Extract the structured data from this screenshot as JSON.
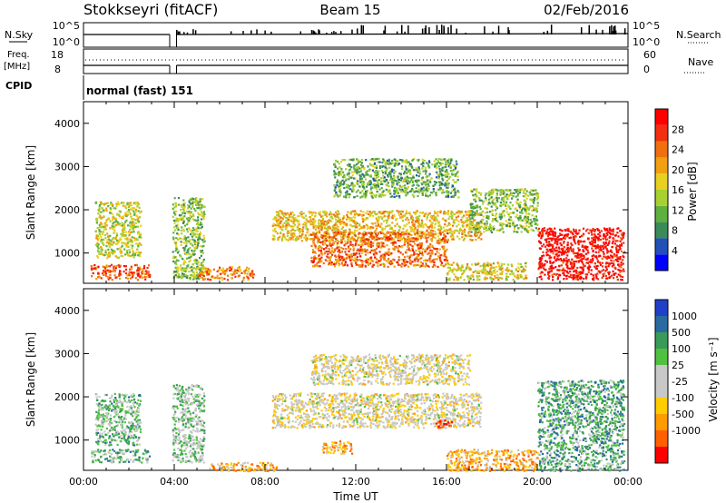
{
  "header": {
    "site": "Stokkseyri (fitACF)",
    "beam": "Beam 15",
    "date": "02/Feb/2016"
  },
  "top_panels": {
    "nsky_label": "N.Sky",
    "nsearch_label": "N.Search",
    "nsky_ticks": [
      "10^5",
      "10^0"
    ],
    "nsearch_ticks": [
      "10^5",
      "10^0"
    ],
    "freq_label_1": "Freq.",
    "freq_label_2": "[MHz]",
    "freq_ticks": [
      "18",
      "8"
    ],
    "nave_label": "Nave",
    "nave_ticks": [
      "60",
      "0"
    ],
    "cpid_label": "CPID",
    "cpid_value": "normal (fast) 151"
  },
  "colors": {
    "power": [
      "#0000ff",
      "#2050b8",
      "#3a8a5a",
      "#60b040",
      "#a8d030",
      "#e8d020",
      "#f0a010",
      "#f07010",
      "#f03010",
      "#ff0000"
    ],
    "velocity": [
      "#ff0000",
      "#ff6000",
      "#ff9a00",
      "#ffcc00",
      "#c8c8c8",
      "#c8c8c8",
      "#50c040",
      "#3a9a5a",
      "#2a6aa0",
      "#2040c8"
    ]
  },
  "chart_data": [
    {
      "type": "heatmap",
      "name": "power",
      "ylabel": "Slant Range [km]",
      "yticks": [
        "1000",
        "2000",
        "3000",
        "4000"
      ],
      "ylim": [
        300,
        4500
      ],
      "xlim": [
        0,
        24
      ],
      "colorbar_label": "Power [dB]",
      "colorbar_ticks": [
        "4",
        "8",
        "12",
        "16",
        "20",
        "24",
        "28"
      ],
      "colorbar_range": [
        0,
        32
      ],
      "features": [
        {
          "t0": 0.3,
          "t1": 2.9,
          "r0": 400,
          "r1": 750,
          "level": 0.8
        },
        {
          "t0": 0.5,
          "t1": 2.5,
          "r0": 900,
          "r1": 2200,
          "level": 0.5
        },
        {
          "t0": 3.9,
          "t1": 5.3,
          "r0": 400,
          "r1": 2300,
          "level": 0.4
        },
        {
          "t0": 5.0,
          "t1": 7.5,
          "r0": 400,
          "r1": 700,
          "level": 0.7
        },
        {
          "t0": 8.3,
          "t1": 17.5,
          "r0": 1300,
          "r1": 2000,
          "level": 0.6
        },
        {
          "t0": 10.0,
          "t1": 16.0,
          "r0": 700,
          "r1": 1500,
          "level": 0.75
        },
        {
          "t0": 11.0,
          "t1": 16.5,
          "r0": 2300,
          "r1": 3200,
          "level": 0.35
        },
        {
          "t0": 16.0,
          "t1": 19.5,
          "r0": 400,
          "r1": 800,
          "level": 0.55
        },
        {
          "t0": 17.0,
          "t1": 20.0,
          "r0": 1500,
          "r1": 2500,
          "level": 0.4
        },
        {
          "t0": 20.0,
          "t1": 23.8,
          "r0": 400,
          "r1": 1600,
          "level": 0.95
        }
      ]
    },
    {
      "type": "heatmap",
      "name": "velocity",
      "xlabel": "Time UT",
      "ylabel": "Slant Range [km]",
      "xticks": [
        "00:00",
        "04:00",
        "08:00",
        "12:00",
        "16:00",
        "20:00",
        "00:00"
      ],
      "yticks": [
        "1000",
        "2000",
        "3000",
        "4000"
      ],
      "ylim": [
        300,
        4500
      ],
      "xlim": [
        0,
        24
      ],
      "colorbar_label": "Velocity [m s⁻¹]",
      "colorbar_ticks": [
        "1000",
        "500",
        "100",
        "25",
        "-25",
        "-100",
        "-500",
        "-1000"
      ],
      "features": [
        {
          "t0": 0.3,
          "t1": 2.9,
          "r0": 500,
          "r1": 800,
          "level": 0.65
        },
        {
          "t0": 0.5,
          "t1": 2.5,
          "r0": 900,
          "r1": 2100,
          "level": 0.65
        },
        {
          "t0": 3.9,
          "t1": 5.3,
          "r0": 500,
          "r1": 2300,
          "level": 0.6
        },
        {
          "t0": 5.5,
          "t1": 8.5,
          "r0": 300,
          "r1": 500,
          "level": 0.3
        },
        {
          "t0": 8.3,
          "t1": 17.5,
          "r0": 1300,
          "r1": 2100,
          "level": 0.45
        },
        {
          "t0": 10.0,
          "t1": 17.0,
          "r0": 2300,
          "r1": 3000,
          "level": 0.45
        },
        {
          "t0": 10.5,
          "t1": 11.8,
          "r0": 700,
          "r1": 1000,
          "level": 0.3
        },
        {
          "t0": 15.5,
          "t1": 16.2,
          "r0": 1300,
          "r1": 1500,
          "level": 0.05
        },
        {
          "t0": 16.0,
          "t1": 20.0,
          "r0": 300,
          "r1": 800,
          "level": 0.3
        },
        {
          "t0": 20.0,
          "t1": 23.8,
          "r0": 300,
          "r1": 2400,
          "level": 0.7
        }
      ]
    }
  ]
}
